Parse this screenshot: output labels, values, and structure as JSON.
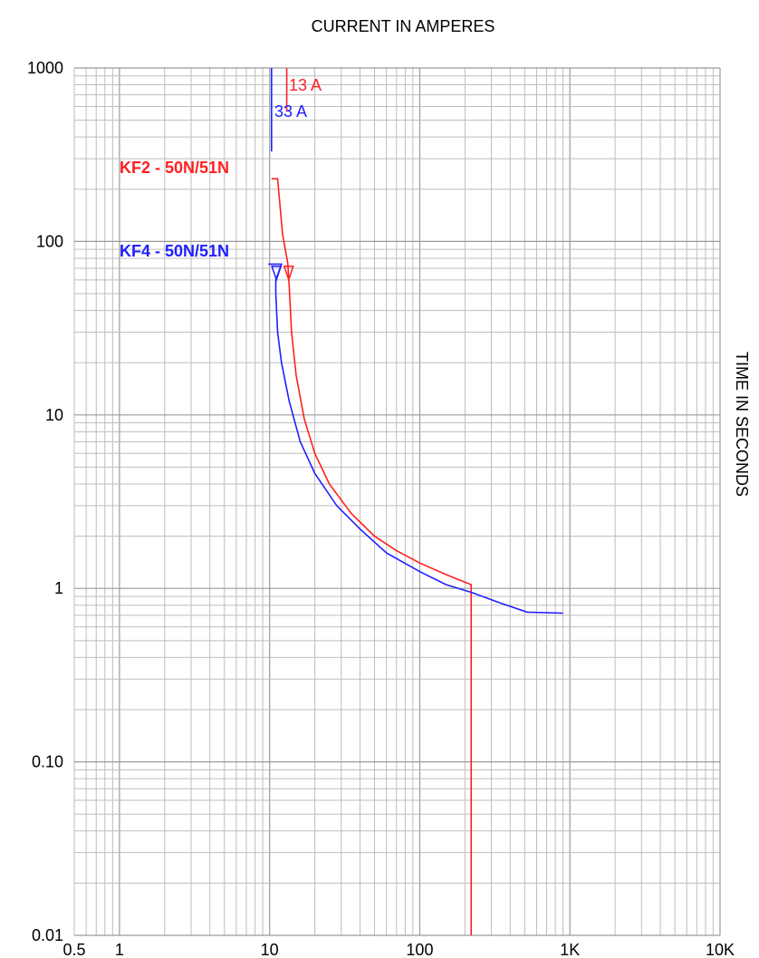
{
  "chart_data": {
    "type": "line",
    "title": "CURRENT IN AMPERES",
    "xlabel": "CURRENT IN AMPERES",
    "ylabel": "TIME IN SECONDS",
    "x_scale": "log",
    "y_scale": "log",
    "xlim": [
      0.5,
      10000
    ],
    "ylim": [
      0.01,
      1000
    ],
    "x_ticks": [
      0.5,
      1,
      10,
      100,
      1000,
      10000
    ],
    "x_tick_labels": [
      "0.5",
      "1",
      "10",
      "100",
      "1K",
      "10K"
    ],
    "y_ticks": [
      0.01,
      0.1,
      1,
      10,
      100,
      1000
    ],
    "y_tick_labels": [
      "0.01",
      "0.10",
      "1",
      "10",
      "100",
      "1000"
    ],
    "grid": true,
    "series": [
      {
        "name": "KF2 - 50N/51N",
        "color": "#ff2020",
        "pickup_label": "13 A",
        "pickup": 13,
        "points": [
          [
            10.3,
            230
          ],
          [
            11.3,
            230
          ],
          [
            12.2,
            110
          ],
          [
            13.2,
            75
          ],
          [
            13.5,
            55
          ],
          [
            14,
            30
          ],
          [
            15,
            17
          ],
          [
            17,
            9.5
          ],
          [
            20,
            6
          ],
          [
            25,
            4
          ],
          [
            35,
            2.7
          ],
          [
            50,
            2.0
          ],
          [
            70,
            1.65
          ],
          [
            100,
            1.4
          ],
          [
            150,
            1.2
          ],
          [
            220,
            1.05
          ],
          [
            220,
            0.01
          ]
        ]
      },
      {
        "name": "KF4 - 50N/51N",
        "color": "#2020ff",
        "pickup_label": "33 A",
        "pickup": 33,
        "points": [
          [
            9.8,
            74
          ],
          [
            12,
            74
          ],
          [
            11,
            60
          ],
          [
            11,
            50
          ],
          [
            11.3,
            30
          ],
          [
            12,
            20
          ],
          [
            13.5,
            12
          ],
          [
            16,
            7
          ],
          [
            20,
            4.6
          ],
          [
            28,
            3
          ],
          [
            40,
            2.2
          ],
          [
            60,
            1.6
          ],
          [
            100,
            1.25
          ],
          [
            150,
            1.05
          ],
          [
            220,
            0.95
          ],
          [
            350,
            0.82
          ],
          [
            520,
            0.73
          ],
          [
            900,
            0.72
          ]
        ]
      }
    ],
    "annotations": [
      {
        "series": 0,
        "type": "tick-mark",
        "x": 13,
        "text": "13 A"
      },
      {
        "series": 1,
        "type": "tick-mark",
        "x": 10.3,
        "text": "33 A"
      }
    ]
  }
}
